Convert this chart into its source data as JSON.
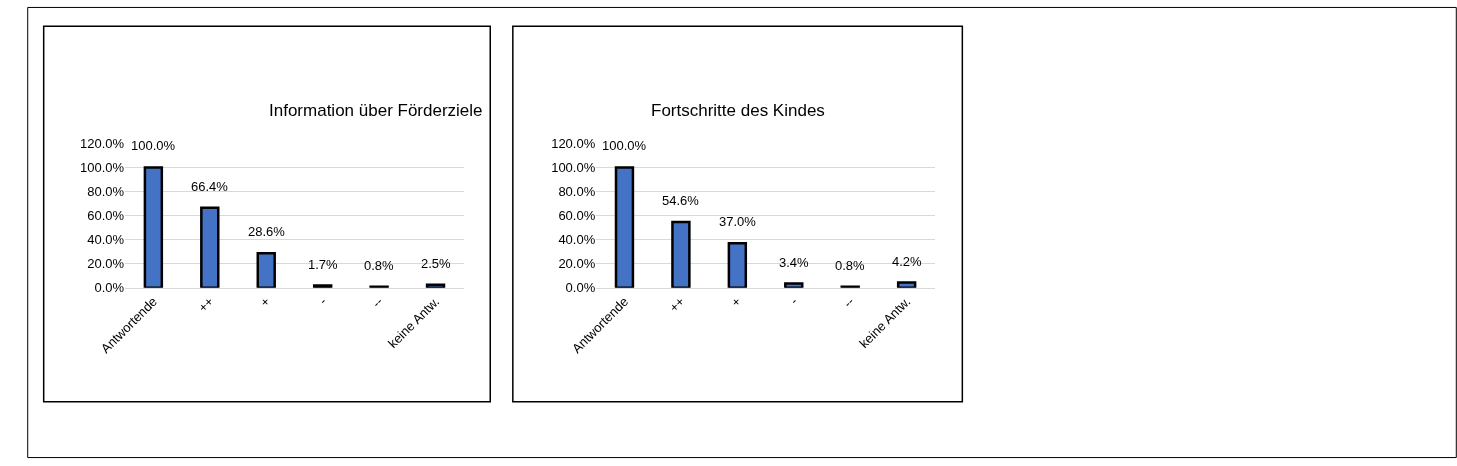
{
  "chart_data": [
    {
      "type": "bar",
      "title": "Information über Förderziele",
      "categories": [
        "Antwortende",
        "++",
        "+",
        "-",
        "--",
        "keine Antw."
      ],
      "values": [
        100.0,
        66.4,
        28.6,
        1.7,
        0.8,
        2.5
      ],
      "value_labels": [
        "100.0%",
        "66.4%",
        "28.6%",
        "1.7%",
        "0.8%",
        "2.5%"
      ],
      "color": "#4472c4",
      "ylim": [
        0,
        120
      ],
      "yticks": [
        {
          "value": 0,
          "label": "0.0%"
        },
        {
          "value": 20,
          "label": "20.0%"
        },
        {
          "value": 40,
          "label": "40.0%"
        },
        {
          "value": 60,
          "label": "60.0%"
        },
        {
          "value": 80,
          "label": "80.0%"
        },
        {
          "value": 100,
          "label": "100.0%"
        },
        {
          "value": 120,
          "label": "120.0%"
        }
      ],
      "grid": "y"
    },
    {
      "type": "bar",
      "title": "Fortschritte des Kindes",
      "categories": [
        "Antwortende",
        "++",
        "+",
        "-",
        "--",
        "keine Antw."
      ],
      "values": [
        100.0,
        54.6,
        37.0,
        3.4,
        0.8,
        4.2
      ],
      "value_labels": [
        "100.0%",
        "54.6%",
        "37.0%",
        "3.4%",
        "0.8%",
        "4.2%"
      ],
      "color": "#4472c4",
      "ylim": [
        0,
        120
      ],
      "yticks": [
        {
          "value": 0,
          "label": "0.0%"
        },
        {
          "value": 20,
          "label": "20.0%"
        },
        {
          "value": 40,
          "label": "40.0%"
        },
        {
          "value": 60,
          "label": "60.0%"
        },
        {
          "value": 80,
          "label": "80.0%"
        },
        {
          "value": 100,
          "label": "100.0%"
        },
        {
          "value": 120,
          "label": "120.0%"
        }
      ],
      "grid": "y"
    }
  ]
}
